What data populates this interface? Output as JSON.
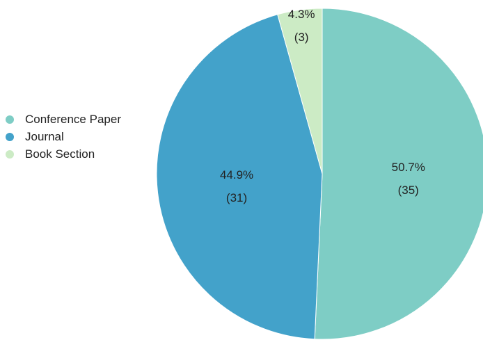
{
  "chart_data": {
    "type": "pie",
    "title": "",
    "legend_position": "left",
    "slices": [
      {
        "label": "Conference Paper",
        "value": 35,
        "percent_label": "50.7%",
        "count_label": "(35)",
        "color": "#7ecdc5"
      },
      {
        "label": "Journal",
        "value": 31,
        "percent_label": "44.9%",
        "count_label": "(31)",
        "color": "#43a2ca"
      },
      {
        "label": "Book Section",
        "value": 3,
        "percent_label": "4.3%",
        "count_label": "(3)",
        "color": "#ccebc5"
      }
    ]
  }
}
